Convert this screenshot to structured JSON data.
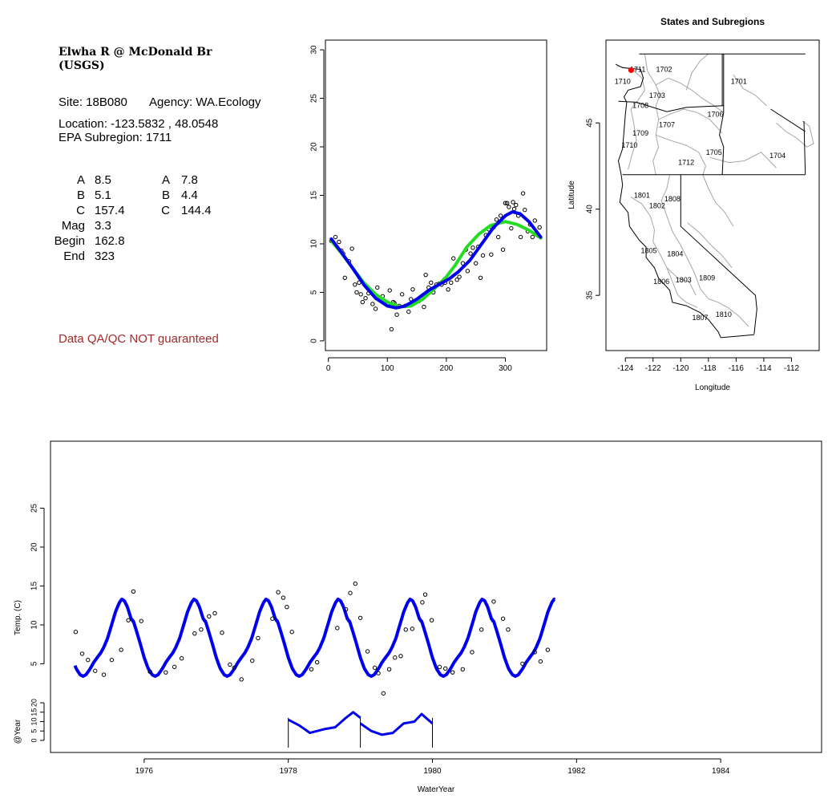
{
  "info": {
    "title_line1": "Elwha R @ McDonald Br",
    "title_line2": "(USGS)",
    "site": "Site: 18B080",
    "agency": "Agency: WA.Ecology",
    "location": "Location: -123.5832 , 48.0548",
    "epa_subregion": "EPA Subregion: 1711",
    "params_left": [
      {
        "label": "A",
        "value": "8.5"
      },
      {
        "label": "B",
        "value": "5.1"
      },
      {
        "label": "C",
        "value": "157.4"
      },
      {
        "label": "Mag",
        "value": "3.3"
      },
      {
        "label": "Begin",
        "value": "162.8"
      },
      {
        "label": "End",
        "value": "323"
      }
    ],
    "params_right": [
      {
        "label": "A",
        "value": "7.8"
      },
      {
        "label": "B",
        "value": "4.4"
      },
      {
        "label": "C",
        "value": "144.4"
      }
    ],
    "disclaimer": "Data QA/QC NOT guaranteed",
    "disclaimer_color": "#a52a2a"
  },
  "colors": {
    "blue": "#0000ee",
    "green": "#22dd22",
    "map_outline": "#a6a6a6",
    "site_marker": "#ff0000"
  },
  "chart_data": [
    {
      "type": "scatter",
      "title": "",
      "xlabel": "",
      "ylabel": "",
      "xlim": [
        -5,
        370
      ],
      "ylim": [
        -1,
        31
      ],
      "xticks": [
        0,
        100,
        200,
        300
      ],
      "yticks": [
        0,
        5,
        10,
        15,
        20,
        25,
        30
      ],
      "series": [
        {
          "kind": "points",
          "points": [
            [
              5,
              10.3
            ],
            [
              12,
              10.7
            ],
            [
              18,
              10.2
            ],
            [
              22,
              9.3
            ],
            [
              25,
              9.0
            ],
            [
              28,
              6.5
            ],
            [
              35,
              8.2
            ],
            [
              40,
              9.5
            ],
            [
              45,
              5.8
            ],
            [
              48,
              5.0
            ],
            [
              52,
              6.0
            ],
            [
              55,
              4.8
            ],
            [
              58,
              4.0
            ],
            [
              63,
              4.4
            ],
            [
              68,
              4.9
            ],
            [
              72,
              5.1
            ],
            [
              75,
              3.8
            ],
            [
              80,
              3.3
            ],
            [
              83,
              5.5
            ],
            [
              88,
              4.3
            ],
            [
              92,
              4.6
            ],
            [
              96,
              4.1
            ],
            [
              100,
              3.8
            ],
            [
              104,
              5.2
            ],
            [
              107,
              1.2
            ],
            [
              110,
              4.0
            ],
            [
              112,
              3.9
            ],
            [
              116,
              2.7
            ],
            [
              120,
              3.6
            ],
            [
              125,
              4.8
            ],
            [
              130,
              3.6
            ],
            [
              136,
              3.0
            ],
            [
              140,
              4.3
            ],
            [
              143,
              5.3
            ],
            [
              148,
              4.0
            ],
            [
              153,
              4.1
            ],
            [
              158,
              4.4
            ],
            [
              162,
              3.5
            ],
            [
              165,
              6.8
            ],
            [
              170,
              5.5
            ],
            [
              174,
              6.0
            ],
            [
              178,
              5.0
            ],
            [
              183,
              5.8
            ],
            [
              188,
              5.9
            ],
            [
              192,
              5.8
            ],
            [
              198,
              6.0
            ],
            [
              203,
              5.3
            ],
            [
              208,
              6.0
            ],
            [
              212,
              8.5
            ],
            [
              218,
              6.3
            ],
            [
              222,
              6.6
            ],
            [
              228,
              8.0
            ],
            [
              233,
              9.4
            ],
            [
              236,
              7.2
            ],
            [
              241,
              9.0
            ],
            [
              245,
              9.6
            ],
            [
              250,
              8.0
            ],
            [
              254,
              9.7
            ],
            [
              258,
              6.5
            ],
            [
              262,
              8.8
            ],
            [
              267,
              10.9
            ],
            [
              272,
              11.5
            ],
            [
              276,
              8.9
            ],
            [
              280,
              11.7
            ],
            [
              285,
              12.5
            ],
            [
              288,
              10.7
            ],
            [
              292,
              12.9
            ],
            [
              296,
              9.4
            ],
            [
              300,
              14.2
            ],
            [
              303,
              14.2
            ],
            [
              306,
              13.8
            ],
            [
              310,
              11.6
            ],
            [
              313,
              14.3
            ],
            [
              315,
              13.6
            ],
            [
              318,
              14.0
            ],
            [
              322,
              12.9
            ],
            [
              326,
              10.7
            ],
            [
              330,
              15.2
            ],
            [
              333,
              13.5
            ],
            [
              338,
              11.3
            ],
            [
              342,
              12.0
            ],
            [
              346,
              10.7
            ],
            [
              350,
              12.4
            ],
            [
              354,
              10.9
            ],
            [
              358,
              11.7
            ]
          ]
        },
        {
          "kind": "line",
          "name": "",
          "color": "#22dd22",
          "points": [
            [
              5,
              10.3
            ],
            [
              20,
              9.2
            ],
            [
              40,
              7.6
            ],
            [
              60,
              6.0
            ],
            [
              80,
              4.8
            ],
            [
              100,
              4.0
            ],
            [
              120,
              3.5
            ],
            [
              140,
              3.6
            ],
            [
              160,
              4.3
            ],
            [
              180,
              5.4
            ],
            [
              200,
              6.6
            ],
            [
              215,
              7.8
            ],
            [
              235,
              9.7
            ],
            [
              255,
              11.0
            ],
            [
              275,
              11.9
            ],
            [
              300,
              12.3
            ],
            [
              320,
              12.0
            ],
            [
              340,
              11.4
            ],
            [
              360,
              10.6
            ]
          ]
        },
        {
          "kind": "line",
          "name": "",
          "color": "#0000ee",
          "points": [
            [
              5,
              10.5
            ],
            [
              20,
              9.3
            ],
            [
              40,
              7.6
            ],
            [
              60,
              5.8
            ],
            [
              80,
              4.4
            ],
            [
              100,
              3.6
            ],
            [
              115,
              3.4
            ],
            [
              130,
              3.6
            ],
            [
              150,
              4.3
            ],
            [
              170,
              5.2
            ],
            [
              190,
              5.9
            ],
            [
              205,
              6.4
            ],
            [
              220,
              7.1
            ],
            [
              240,
              8.3
            ],
            [
              260,
              10.0
            ],
            [
              280,
              11.7
            ],
            [
              300,
              12.9
            ],
            [
              312,
              13.3
            ],
            [
              325,
              13.1
            ],
            [
              340,
              12.3
            ],
            [
              360,
              10.7
            ]
          ]
        }
      ]
    },
    {
      "type": "map",
      "title": "States and Subregions",
      "xlabel": "Longitude",
      "ylabel": "Latitude",
      "xlim": [
        -125.4,
        -110.0
      ],
      "ylim": [
        31.8,
        49.8
      ],
      "xticks": [
        -124,
        -122,
        -120,
        -118,
        -116,
        -114,
        -112
      ],
      "yticks": [
        35,
        40,
        45
      ],
      "site": {
        "lon": -123.5832,
        "lat": 48.0548
      },
      "regions": [
        {
          "label": "1702",
          "lon": -121.2,
          "lat": 48.1
        },
        {
          "label": "1711",
          "lon": -123.1,
          "lat": 48.1
        },
        {
          "label": "1701",
          "lon": -115.8,
          "lat": 47.4
        },
        {
          "label": "1710",
          "lon": -124.2,
          "lat": 47.4
        },
        {
          "label": "1703",
          "lon": -121.7,
          "lat": 46.6
        },
        {
          "label": "1708",
          "lon": -122.9,
          "lat": 46.0
        },
        {
          "label": "1706",
          "lon": -117.5,
          "lat": 45.5
        },
        {
          "label": "1707",
          "lon": -121.0,
          "lat": 44.9
        },
        {
          "label": "1709",
          "lon": -122.9,
          "lat": 44.4
        },
        {
          "label": "1710",
          "lon": -123.7,
          "lat": 43.7
        },
        {
          "label": "1705",
          "lon": -117.6,
          "lat": 43.3
        },
        {
          "label": "1704",
          "lon": -113.0,
          "lat": 43.1
        },
        {
          "label": "1712",
          "lon": -119.6,
          "lat": 42.7
        },
        {
          "label": "1801",
          "lon": -122.8,
          "lat": 40.8
        },
        {
          "label": "1808",
          "lon": -120.6,
          "lat": 40.6
        },
        {
          "label": "1802",
          "lon": -121.7,
          "lat": 40.2
        },
        {
          "label": "1805",
          "lon": -122.3,
          "lat": 37.6
        },
        {
          "label": "1804",
          "lon": -120.4,
          "lat": 37.4
        },
        {
          "label": "1809",
          "lon": -118.1,
          "lat": 36.0
        },
        {
          "label": "1806",
          "lon": -121.4,
          "lat": 35.8
        },
        {
          "label": "1803",
          "lon": -119.8,
          "lat": 35.9
        },
        {
          "label": "1810",
          "lon": -116.9,
          "lat": 33.9
        },
        {
          "label": "1807",
          "lon": -118.6,
          "lat": 33.7
        }
      ]
    },
    {
      "type": "line",
      "title": "",
      "xlabel": "WaterYear",
      "ylabel": "Temp. (C)",
      "ylabel2": "@Year",
      "xlim": [
        1974.7,
        1985.4
      ],
      "ylim": [
        0,
        30
      ],
      "ylim2": [
        -3,
        26
      ],
      "xticks": [
        1976,
        1978,
        1980,
        1982,
        1984
      ],
      "yticks": [
        5,
        10,
        15,
        20,
        25
      ],
      "yticks2": [
        0,
        5,
        10,
        15,
        20
      ],
      "fit_range": [
        1975.04,
        1981.7
      ],
      "year_lines_range": [
        1978.0,
        1980.0
      ],
      "year_lines": [
        {
          "x": [
            1978.0,
            1979.0
          ],
          "points": [
            [
              1978.0,
              11
            ],
            [
              1978.15,
              8
            ],
            [
              1978.3,
              4
            ],
            [
              1978.5,
              6
            ],
            [
              1978.65,
              7
            ],
            [
              1978.8,
              12
            ],
            [
              1978.9,
              15
            ],
            [
              1979.0,
              12
            ]
          ]
        },
        {
          "x": [
            1979.0,
            1980.0
          ],
          "points": [
            [
              1979.0,
              9
            ],
            [
              1979.15,
              5
            ],
            [
              1979.3,
              3
            ],
            [
              1979.45,
              4
            ],
            [
              1979.6,
              9
            ],
            [
              1979.75,
              10
            ],
            [
              1979.85,
              14
            ],
            [
              1980.0,
              9
            ]
          ]
        }
      ],
      "points": [
        [
          1975.05,
          9.1
        ],
        [
          1975.14,
          6.3
        ],
        [
          1975.22,
          5.5
        ],
        [
          1975.32,
          4.1
        ],
        [
          1975.44,
          3.6
        ],
        [
          1975.55,
          5.5
        ],
        [
          1975.68,
          6.8
        ],
        [
          1975.78,
          10.6
        ],
        [
          1975.85,
          14.3
        ],
        [
          1975.96,
          10.5
        ],
        [
          1976.08,
          4.0
        ],
        [
          1976.3,
          3.9
        ],
        [
          1976.42,
          4.6
        ],
        [
          1976.52,
          5.7
        ],
        [
          1976.7,
          8.9
        ],
        [
          1976.79,
          9.4
        ],
        [
          1976.9,
          11.1
        ],
        [
          1976.98,
          11.5
        ],
        [
          1977.08,
          9.0
        ],
        [
          1977.19,
          4.9
        ],
        [
          1977.25,
          4.5
        ],
        [
          1977.35,
          3.0
        ],
        [
          1977.5,
          5.4
        ],
        [
          1977.58,
          8.3
        ],
        [
          1977.78,
          10.8
        ],
        [
          1977.86,
          14.2
        ],
        [
          1977.93,
          13.5
        ],
        [
          1977.98,
          12.3
        ],
        [
          1978.05,
          9.1
        ],
        [
          1978.32,
          4.3
        ],
        [
          1978.4,
          5.2
        ],
        [
          1978.68,
          9.6
        ],
        [
          1978.8,
          12.0
        ],
        [
          1978.86,
          14.1
        ],
        [
          1978.93,
          15.3
        ],
        [
          1979.0,
          10.9
        ],
        [
          1979.1,
          6.6
        ],
        [
          1979.2,
          4.5
        ],
        [
          1979.25,
          3.8
        ],
        [
          1979.32,
          1.2
        ],
        [
          1979.4,
          4.3
        ],
        [
          1979.48,
          5.8
        ],
        [
          1979.56,
          6.0
        ],
        [
          1979.63,
          9.4
        ],
        [
          1979.72,
          9.5
        ],
        [
          1979.86,
          12.9
        ],
        [
          1979.9,
          13.9
        ],
        [
          1979.99,
          10.6
        ],
        [
          1980.1,
          4.6
        ],
        [
          1980.18,
          4.4
        ],
        [
          1980.28,
          3.9
        ],
        [
          1980.42,
          4.3
        ],
        [
          1980.55,
          6.5
        ],
        [
          1980.68,
          9.4
        ],
        [
          1980.85,
          13.0
        ],
        [
          1980.98,
          10.8
        ],
        [
          1981.05,
          9.4
        ],
        [
          1981.25,
          5.0
        ],
        [
          1981.42,
          6.5
        ],
        [
          1981.5,
          5.3
        ],
        [
          1981.6,
          6.8
        ]
      ]
    }
  ]
}
